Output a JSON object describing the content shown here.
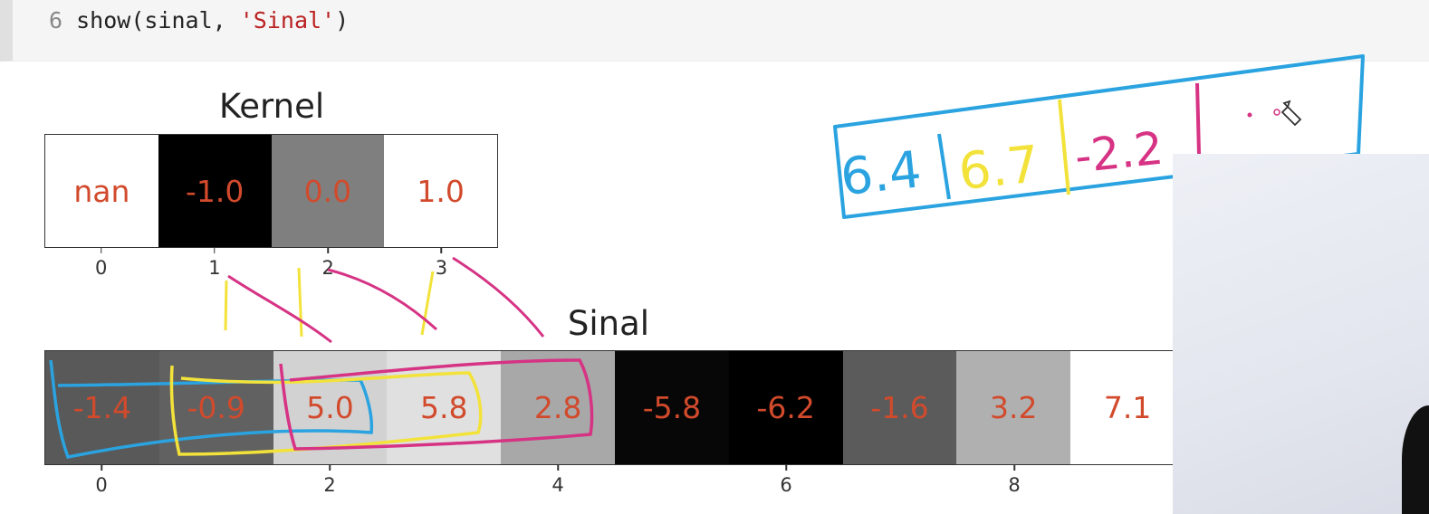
{
  "code": {
    "line_number": "6",
    "text_before": "show(sinal, ",
    "string_literal": "'Sinal'",
    "text_after": ")"
  },
  "chart_data": [
    {
      "type": "heatmap",
      "title": "Kernel",
      "values": [
        null,
        -1.0,
        0.0,
        1.0
      ],
      "cell_labels": [
        "nan",
        "-1.0",
        "0.0",
        "1.0"
      ],
      "cell_colors": [
        "#ffffff",
        "#000000",
        "#7f7f7f",
        "#ffffff"
      ],
      "xticks": [
        "0",
        "1",
        "2",
        "3"
      ],
      "colormap": "gray"
    },
    {
      "type": "heatmap",
      "title": "Sinal",
      "values": [
        -1.4,
        -0.9,
        5.0,
        5.8,
        2.8,
        -5.8,
        -6.2,
        -1.6,
        3.2,
        7.1
      ],
      "cell_labels": [
        "-1.4",
        "-0.9",
        "5.0",
        "5.8",
        "2.8",
        "-5.8",
        "-6.2",
        "-1.6",
        "3.2",
        "7.1"
      ],
      "cell_colors": [
        "#595959",
        "#616161",
        "#d2d2d2",
        "#e0e0e0",
        "#a8a8a8",
        "#070707",
        "#000000",
        "#5b5b5b",
        "#b0b0b0",
        "#ffffff"
      ],
      "xticks": [
        "0",
        "2",
        "4",
        "6",
        "8"
      ],
      "colormap": "gray"
    }
  ],
  "handwriting": {
    "box_values": [
      "6.4",
      "6.7",
      "-2.2"
    ]
  },
  "colors": {
    "annotation_blue": "#2aa3e0",
    "annotation_yellow": "#f2e23a",
    "annotation_pink": "#d63384",
    "value_text": "#d24a2c"
  }
}
